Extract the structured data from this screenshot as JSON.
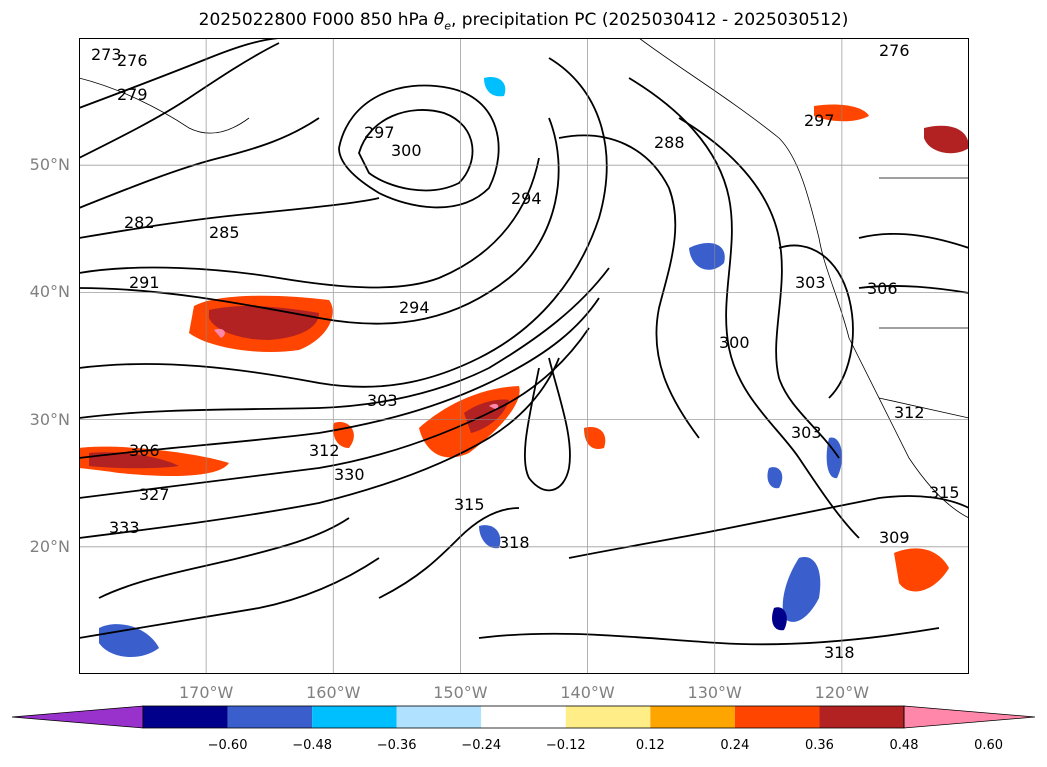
{
  "title": "2025022800 F000 850 hPa θe, precipitation PC (2025030412 - 2025030512)",
  "lat_labels": [
    {
      "text": "50°N",
      "lat": 50
    },
    {
      "text": "40°N",
      "lat": 40
    },
    {
      "text": "30°N",
      "lat": 30
    },
    {
      "text": "20°N",
      "lat": 20
    }
  ],
  "lon_labels": [
    {
      "text": "170°W",
      "lon": -170
    },
    {
      "text": "160°W",
      "lon": -160
    },
    {
      "text": "150°W",
      "lon": -150
    },
    {
      "text": "140°W",
      "lon": -140
    },
    {
      "text": "130°W",
      "lon": -130
    },
    {
      "text": "120°W",
      "lon": -120
    }
  ],
  "map_extent": {
    "lon_min": -180,
    "lon_max": -110,
    "lat_min": 10,
    "lat_max": 60
  },
  "contour_labels": [
    "273",
    "276",
    "279",
    "282",
    "285",
    "291",
    "294",
    "297",
    "300",
    "294",
    "288",
    "303",
    "306",
    "303",
    "312",
    "315",
    "318",
    "327",
    "330",
    "333",
    "300",
    "306",
    "303",
    "309",
    "312",
    "315",
    "318",
    "297",
    "276"
  ],
  "colorbar": {
    "colors": [
      "#9932cc",
      "#00008b",
      "#3a5fcd",
      "#00bfff",
      "#b0e2ff",
      "#ffffff",
      "#ffee88",
      "#ffa500",
      "#ff4500",
      "#b22222",
      "#ff88aa"
    ],
    "ticks": [
      "−0.60",
      "−0.48",
      "−0.36",
      "−0.24",
      "−0.12",
      "0.12",
      "0.24",
      "0.36",
      "0.48",
      "0.60"
    ]
  }
}
